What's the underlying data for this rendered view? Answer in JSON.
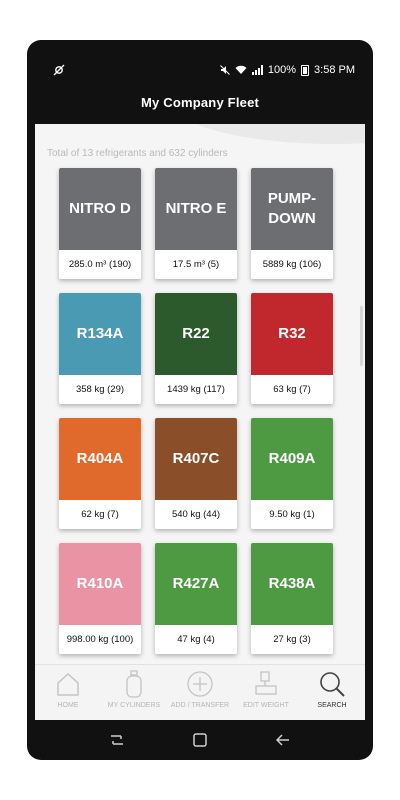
{
  "status_bar": {
    "battery": "100%",
    "time": "3:58 PM",
    "icons": [
      "notification-icon",
      "mute-icon",
      "wifi-icon",
      "signal-icon",
      "battery-icon"
    ]
  },
  "header": {
    "title": "My Company Fleet"
  },
  "summary": "Total of 13 refrigerants and 632 cylinders",
  "refrigerants": [
    {
      "name": "NITRO D",
      "amount": "285.0 m³ (190)",
      "color": "#6d6e71"
    },
    {
      "name": "NITRO E",
      "amount": "17.5 m³ (5)",
      "color": "#6d6e71"
    },
    {
      "name": "PUMP-DOWN",
      "amount": "5889 kg (106)",
      "color": "#6d6e71"
    },
    {
      "name": "R134A",
      "amount": "358 kg (29)",
      "color": "#4a9ab3"
    },
    {
      "name": "R22",
      "amount": "1439 kg (117)",
      "color": "#2d5a2d"
    },
    {
      "name": "R32",
      "amount": "63 kg (7)",
      "color": "#c1282d"
    },
    {
      "name": "R404A",
      "amount": "62 kg (7)",
      "color": "#e06a2c"
    },
    {
      "name": "R407C",
      "amount": "540 kg (44)",
      "color": "#8a4f28"
    },
    {
      "name": "R409A",
      "amount": "9.50 kg (1)",
      "color": "#4e9a43"
    },
    {
      "name": "R410A",
      "amount": "998.00 kg (100)",
      "color": "#e993a5"
    },
    {
      "name": "R427A",
      "amount": "47 kg (4)",
      "color": "#4e9a43"
    },
    {
      "name": "R438A",
      "amount": "27 kg (3)",
      "color": "#4e9a43"
    }
  ],
  "bottom_nav": [
    {
      "label": "HOME",
      "icon": "home-icon"
    },
    {
      "label": "MY CYLINDERS",
      "icon": "cylinder-icon"
    },
    {
      "label": "ADD / TRANSFER",
      "icon": "add-circle-icon"
    },
    {
      "label": "EDIT WEIGHT",
      "icon": "scale-icon"
    },
    {
      "label": "SEARCH",
      "icon": "search-icon",
      "active": true
    }
  ],
  "system_nav": [
    "recents-icon",
    "home-button-icon",
    "back-icon"
  ]
}
